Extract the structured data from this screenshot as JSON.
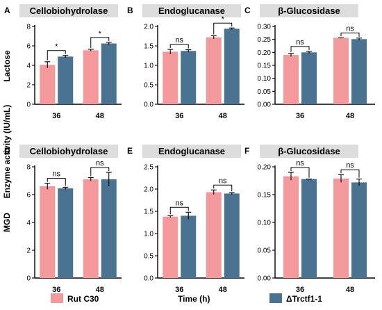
{
  "figure": {
    "row_labels": [
      "Lactose",
      "MGD"
    ],
    "common_ylabel": "Enzyme activity (IU/mL)",
    "xlabel": "Time (h)",
    "legend": [
      {
        "label": "Rut C30",
        "color": "#f4999b"
      },
      {
        "label": "ΔTrctf1-1",
        "color": "#4a7391"
      }
    ]
  },
  "chart_data": [
    {
      "type": "bar",
      "panel": "A",
      "title": "Cellobiohydrolase",
      "row": "Lactose",
      "categories": [
        "36",
        "48"
      ],
      "ylim": [
        0,
        8
      ],
      "yticks": [
        0,
        2,
        4,
        6,
        8
      ],
      "series": [
        {
          "name": "Rut C30",
          "values": [
            4.05,
            5.55
          ],
          "errors": [
            0.32,
            0.1
          ]
        },
        {
          "name": "ΔTrctf1-1",
          "values": [
            4.9,
            6.25
          ],
          "errors": [
            0.12,
            0.12
          ]
        }
      ],
      "significance": [
        "*",
        "*"
      ]
    },
    {
      "type": "bar",
      "panel": "B",
      "title": "Endoglucanase",
      "row": "Lactose",
      "categories": [
        "36",
        "48"
      ],
      "ylim": [
        0,
        2.0
      ],
      "yticks": [
        0.0,
        0.5,
        1.0,
        1.5,
        2.0
      ],
      "series": [
        {
          "name": "Rut C30",
          "values": [
            1.35,
            1.72
          ],
          "errors": [
            0.06,
            0.04
          ]
        },
        {
          "name": "ΔTrctf1-1",
          "values": [
            1.37,
            1.94
          ],
          "errors": [
            0.03,
            0.02
          ]
        }
      ],
      "significance": [
        "ns",
        "*"
      ]
    },
    {
      "type": "bar",
      "panel": "C",
      "title": "β-Glucosidase",
      "row": "Lactose",
      "categories": [
        "36",
        "48"
      ],
      "ylim": [
        0,
        0.3
      ],
      "yticks": [
        0.0,
        0.05,
        0.1,
        0.15,
        0.2,
        0.25,
        0.3
      ],
      "series": [
        {
          "name": "Rut C30",
          "values": [
            0.19,
            0.256
          ],
          "errors": [
            0.006,
            0.0
          ]
        },
        {
          "name": "ΔTrctf1-1",
          "values": [
            0.2,
            0.251
          ],
          "errors": [
            0.004,
            0.004
          ]
        }
      ],
      "significance": [
        "ns",
        "ns"
      ]
    },
    {
      "type": "bar",
      "panel": "D",
      "title": "Cellobiohydrolase",
      "row": "MGD",
      "categories": [
        "36",
        "48"
      ],
      "ylim": [
        0,
        8
      ],
      "yticks": [
        0,
        2,
        4,
        6,
        8
      ],
      "series": [
        {
          "name": "Rut C30",
          "values": [
            6.6,
            7.1
          ],
          "errors": [
            0.22,
            0.12
          ]
        },
        {
          "name": "ΔTrctf1-1",
          "values": [
            6.45,
            7.1
          ],
          "errors": [
            0.08,
            0.5
          ]
        }
      ],
      "significance": [
        "ns",
        "ns"
      ]
    },
    {
      "type": "bar",
      "panel": "E",
      "title": "Endoglucanase",
      "row": "MGD",
      "categories": [
        "36",
        "48"
      ],
      "ylim": [
        0,
        2.5
      ],
      "yticks": [
        0.0,
        0.5,
        1.0,
        1.5,
        2.0,
        2.5
      ],
      "series": [
        {
          "name": "Rut C30",
          "values": [
            1.38,
            1.93
          ],
          "errors": [
            0.02,
            0.05
          ]
        },
        {
          "name": "ΔTrctf1-1",
          "values": [
            1.4,
            1.9
          ],
          "errors": [
            0.08,
            0.02
          ]
        }
      ],
      "significance": [
        "ns",
        "ns"
      ]
    },
    {
      "type": "bar",
      "panel": "F",
      "title": "β-Glucosidase",
      "row": "MGD",
      "categories": [
        "36",
        "48"
      ],
      "ylim": [
        0,
        0.2
      ],
      "yticks": [
        0.0,
        0.05,
        0.1,
        0.15,
        0.2
      ],
      "series": [
        {
          "name": "Rut C30",
          "values": [
            0.183,
            0.179
          ],
          "errors": [
            0.007,
            0.007
          ]
        },
        {
          "name": "ΔTrctf1-1",
          "values": [
            0.178,
            0.172
          ],
          "errors": [
            0.0,
            0.006
          ]
        }
      ],
      "significance": [
        "ns",
        "ns"
      ]
    }
  ]
}
